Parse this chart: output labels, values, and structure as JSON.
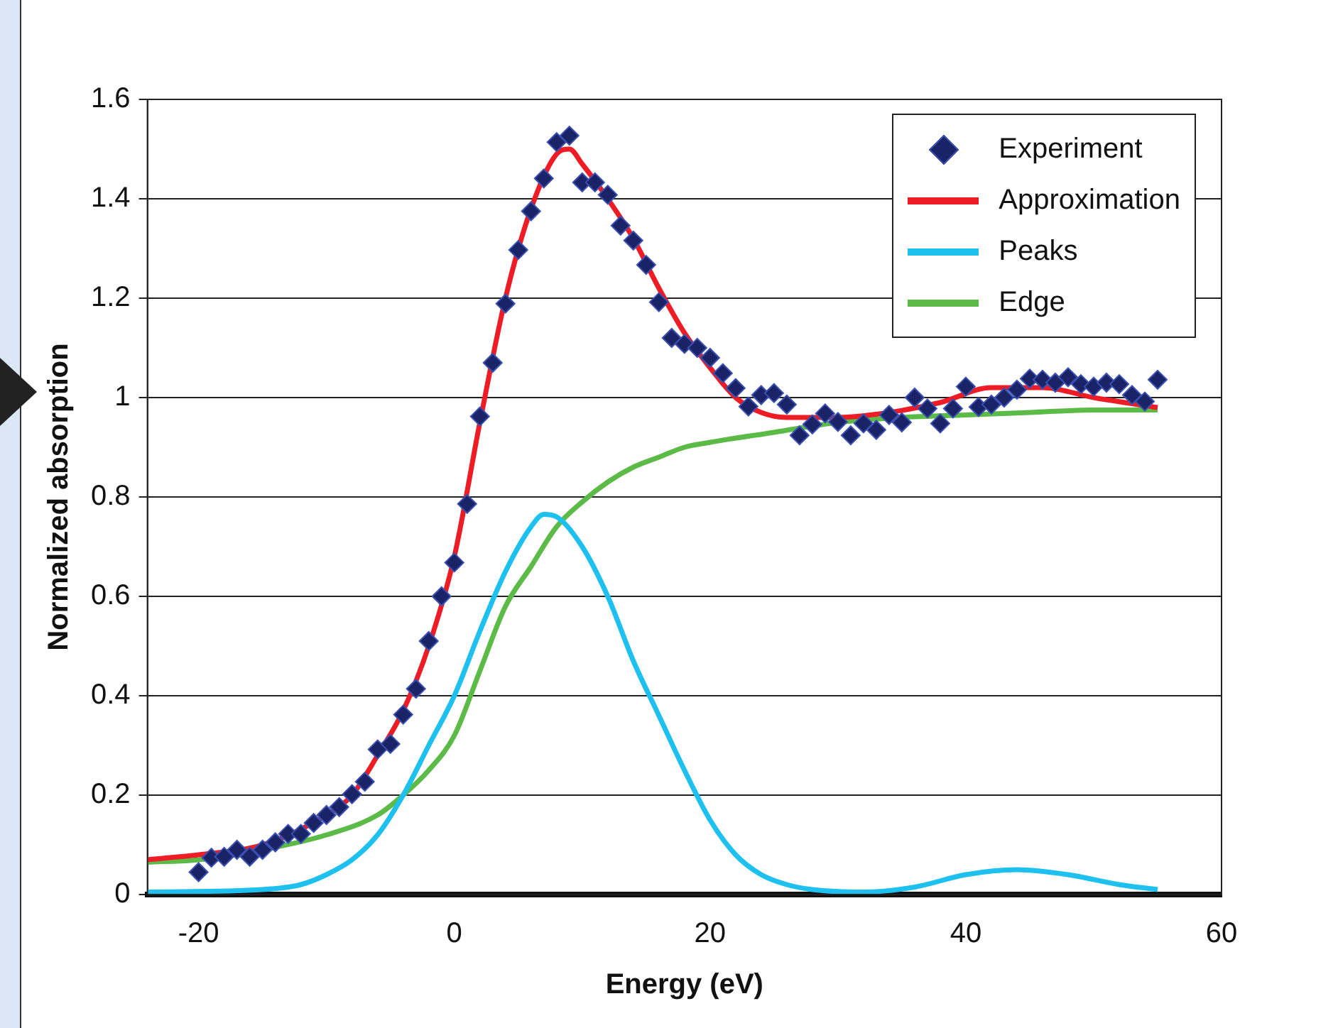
{
  "chart_data": {
    "type": "line",
    "xlabel": "Energy (eV)",
    "ylabel": "Normalized absorption",
    "xlim": [
      -24,
      60
    ],
    "xticks": [
      -20,
      0,
      20,
      40,
      60
    ],
    "ylim": [
      0,
      1.6
    ],
    "yticks": [
      0,
      0.2,
      0.4,
      0.6,
      0.8,
      1,
      1.2,
      1.4,
      1.6
    ],
    "grid": "y",
    "legend": "top right",
    "series": [
      {
        "name": "Experiment",
        "type": "scatter",
        "marker": "diamond",
        "color": "#1a2366",
        "x": [
          -20,
          -19,
          -18,
          -17,
          -16,
          -15,
          -14,
          -13,
          -12,
          -11,
          -10,
          -9,
          -8,
          -7,
          -6,
          -5,
          -4,
          -3,
          -2,
          -1,
          0,
          1,
          2,
          3,
          4,
          5,
          6,
          7,
          8,
          9,
          10,
          11,
          12,
          13,
          14,
          15,
          16,
          17,
          18,
          19,
          20,
          21,
          22,
          23,
          24,
          25,
          26,
          27,
          28,
          29,
          30,
          31,
          32,
          33,
          34,
          35,
          36,
          37,
          38,
          39,
          40,
          41,
          42,
          43,
          44,
          45,
          46,
          47,
          48,
          49,
          50,
          51,
          52,
          53,
          54,
          55
        ],
        "values": [
          0.045,
          0.074,
          0.076,
          0.09,
          0.076,
          0.09,
          0.105,
          0.122,
          0.122,
          0.144,
          0.16,
          0.176,
          0.202,
          0.227,
          0.292,
          0.303,
          0.362,
          0.414,
          0.51,
          0.6,
          0.668,
          0.786,
          0.962,
          1.07,
          1.189,
          1.297,
          1.375,
          1.441,
          1.514,
          1.527,
          1.433,
          1.433,
          1.408,
          1.346,
          1.316,
          1.267,
          1.192,
          1.12,
          1.108,
          1.1,
          1.08,
          1.049,
          1.019,
          0.982,
          1.005,
          1.009,
          0.986,
          0.924,
          0.946,
          0.968,
          0.951,
          0.924,
          0.948,
          0.935,
          0.965,
          0.95,
          1.0,
          0.978,
          0.948,
          0.978,
          1.022,
          0.981,
          0.986,
          1.0,
          1.016,
          1.038,
          1.036,
          1.03,
          1.041,
          1.027,
          1.022,
          1.03,
          1.027,
          1.005,
          0.992,
          1.036
        ]
      },
      {
        "name": "Approximation",
        "marker": "none",
        "color": "#ee1c25",
        "x": [
          -24,
          -20,
          -15,
          -10,
          -8,
          -6,
          -4,
          -2,
          0,
          2,
          4,
          6,
          8,
          9,
          10,
          12,
          14,
          16,
          18,
          20,
          22,
          24,
          26,
          30,
          34,
          38,
          42,
          46,
          50,
          55
        ],
        "values": [
          0.07,
          0.08,
          0.1,
          0.16,
          0.2,
          0.28,
          0.37,
          0.5,
          0.68,
          0.95,
          1.2,
          1.38,
          1.49,
          1.5,
          1.47,
          1.4,
          1.32,
          1.22,
          1.13,
          1.06,
          1.0,
          0.97,
          0.96,
          0.96,
          0.97,
          0.99,
          1.02,
          1.02,
          1.0,
          0.98
        ]
      },
      {
        "name": "Peaks",
        "marker": "none",
        "color": "#1ec0ef",
        "x": [
          -24,
          -15,
          -12,
          -10,
          -8,
          -6,
          -4,
          -2,
          0,
          2,
          4,
          6,
          7,
          8,
          10,
          12,
          14,
          16,
          18,
          20,
          22,
          24,
          26,
          28,
          32,
          36,
          40,
          44,
          48,
          52,
          55
        ],
        "values": [
          0.005,
          0.01,
          0.02,
          0.04,
          0.07,
          0.12,
          0.2,
          0.3,
          0.4,
          0.53,
          0.65,
          0.74,
          0.765,
          0.76,
          0.7,
          0.6,
          0.47,
          0.36,
          0.25,
          0.15,
          0.08,
          0.04,
          0.02,
          0.01,
          0.005,
          0.015,
          0.04,
          0.05,
          0.04,
          0.02,
          0.01
        ]
      },
      {
        "name": "Edge",
        "marker": "none",
        "color": "#5cba47",
        "x": [
          -24,
          -20,
          -15,
          -10,
          -6,
          -4,
          -2,
          0,
          2,
          4,
          6,
          8,
          10,
          12,
          14,
          16,
          18,
          20,
          25,
          30,
          35,
          40,
          45,
          50,
          55
        ],
        "values": [
          0.065,
          0.07,
          0.09,
          0.12,
          0.16,
          0.2,
          0.25,
          0.32,
          0.45,
          0.58,
          0.66,
          0.74,
          0.79,
          0.83,
          0.86,
          0.88,
          0.9,
          0.91,
          0.93,
          0.95,
          0.96,
          0.965,
          0.97,
          0.975,
          0.975
        ]
      }
    ]
  }
}
